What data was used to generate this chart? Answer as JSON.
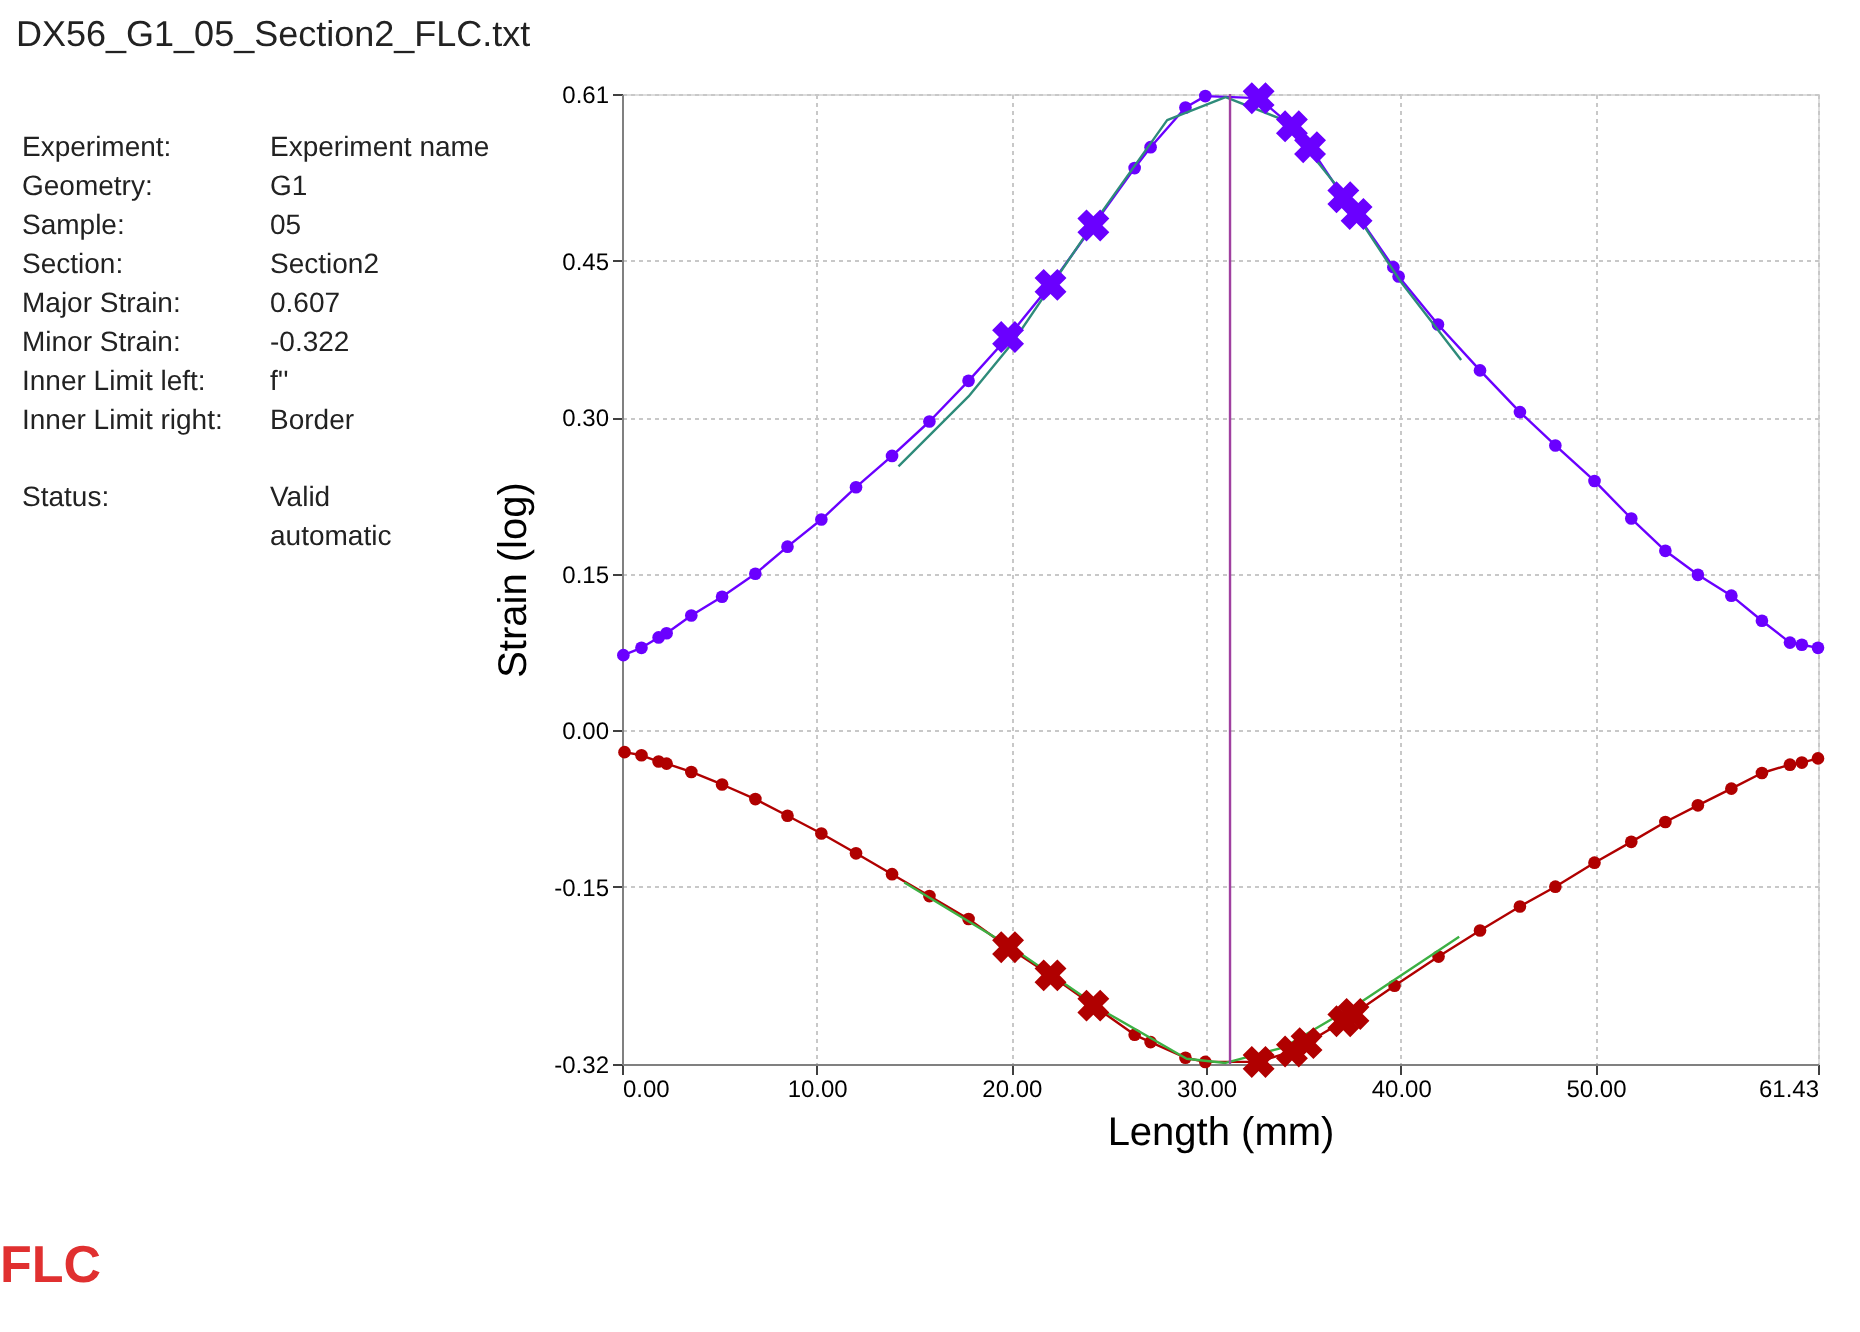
{
  "chart_data": {
    "type": "line",
    "title": "DX56_G1_05_Section2_FLC.txt",
    "xlabel": "Length  (mm)",
    "ylabel": "Strain (log)",
    "annotations": [
      "Experiment:",
      "Experiment name",
      "Geometry:",
      "G1",
      "Sample:",
      "05",
      "Section:",
      "Section2",
      "Major Strain:",
      "0.607",
      "Minor Strain:",
      "-0.322",
      "Inner Limit left:",
      "f''",
      "Inner Limit right:",
      "Border",
      "Status:",
      "Valid\nautomatic",
      "FLC"
    ],
    "xlim": [
      0,
      61.43
    ],
    "ylim": [
      -0.32,
      0.61
    ],
    "xticks": [
      {
        "value": 0,
        "label": "0.00"
      },
      {
        "value": 10,
        "label": "10.00"
      },
      {
        "value": 20,
        "label": "20.00"
      },
      {
        "value": 30,
        "label": "30.00"
      },
      {
        "value": 40,
        "label": "40.00"
      },
      {
        "value": 50,
        "label": "50.00"
      },
      {
        "value": 61.43,
        "label": "61.43"
      }
    ],
    "yticks": [
      {
        "value": -0.32,
        "label": "-0.32"
      },
      {
        "value": -0.15,
        "label": "-0.15"
      },
      {
        "value": 0,
        "label": "0.00"
      },
      {
        "value": 0.15,
        "label": "0.15"
      },
      {
        "value": 0.3,
        "label": "0.30"
      },
      {
        "value": 0.45,
        "label": "0.45"
      },
      {
        "value": 0.61,
        "label": "0.61"
      }
    ],
    "grid": true,
    "ref_lines": [
      {
        "axis": "x",
        "value": 31.23,
        "color": "#a040a0"
      }
    ],
    "series": [
      {
        "color": "#6a00ff",
        "marker": "circle",
        "line_style": "solid",
        "x": [
          0.07,
          1.0,
          1.88,
          2.29,
          3.56,
          5.14,
          6.85,
          8.5,
          10.24,
          12.02,
          13.87,
          15.79,
          17.8,
          19.83,
          22.01,
          24.21,
          26.33,
          27.15,
          28.94,
          29.96,
          32.7,
          34.41,
          35.34,
          37.05,
          37.73,
          39.62,
          39.89,
          41.91,
          44.07,
          46.12,
          47.94,
          49.95,
          51.84,
          53.59,
          55.26,
          56.98,
          58.55,
          59.99,
          60.6,
          61.43
        ],
        "values": [
          0.072,
          0.079,
          0.089,
          0.093,
          0.11,
          0.128,
          0.15,
          0.176,
          0.202,
          0.233,
          0.263,
          0.296,
          0.335,
          0.377,
          0.427,
          0.484,
          0.539,
          0.559,
          0.597,
          0.608,
          0.606,
          0.579,
          0.559,
          0.511,
          0.495,
          0.444,
          0.435,
          0.389,
          0.345,
          0.305,
          0.273,
          0.239,
          0.203,
          0.172,
          0.149,
          0.129,
          0.105,
          0.084,
          0.082,
          0.079
        ]
      },
      {
        "color": "#b00000",
        "marker": "circle",
        "line_style": "solid",
        "x": [
          0.13,
          1.0,
          1.88,
          2.29,
          3.56,
          5.14,
          6.85,
          8.5,
          10.24,
          12.02,
          13.87,
          15.79,
          17.8,
          19.83,
          22.01,
          24.21,
          26.33,
          27.15,
          28.94,
          29.96,
          32.7,
          34.41,
          35.16,
          37.05,
          37.57,
          39.68,
          41.94,
          44.07,
          46.12,
          47.94,
          49.95,
          51.84,
          53.59,
          55.26,
          56.98,
          58.55,
          59.99,
          60.6,
          61.43
        ],
        "values": [
          -0.021,
          -0.024,
          -0.03,
          -0.032,
          -0.04,
          -0.052,
          -0.066,
          -0.082,
          -0.099,
          -0.118,
          -0.138,
          -0.159,
          -0.181,
          -0.208,
          -0.235,
          -0.264,
          -0.292,
          -0.299,
          -0.314,
          -0.318,
          -0.318,
          -0.308,
          -0.3,
          -0.279,
          -0.272,
          -0.245,
          -0.217,
          -0.192,
          -0.169,
          -0.15,
          -0.127,
          -0.107,
          -0.088,
          -0.072,
          -0.056,
          -0.041,
          -0.033,
          -0.031,
          -0.027
        ]
      },
      {
        "color": "#2e8b7a",
        "marker": "none",
        "line_style": "solid",
        "x": [
          14.2,
          17.8,
          20,
          24,
          28,
          31,
          34,
          37,
          40,
          43.1
        ],
        "values": [
          0.253,
          0.32,
          0.37,
          0.48,
          0.585,
          0.607,
          0.585,
          0.515,
          0.43,
          0.355
        ]
      },
      {
        "color": "#3cb043",
        "marker": "none",
        "line_style": "solid",
        "x": [
          14.5,
          20,
          25,
          29,
          31,
          34,
          38,
          43
        ],
        "values": [
          -0.146,
          -0.208,
          -0.272,
          -0.315,
          -0.319,
          -0.304,
          -0.26,
          -0.198
        ]
      },
      {
        "type": "scatter",
        "color": "#6a00ff",
        "marker": "cross",
        "x": [
          19.83,
          22.01,
          24.21,
          32.7,
          34.41,
          35.34,
          37.05,
          37.73
        ],
        "values": [
          0.377,
          0.427,
          0.484,
          0.606,
          0.579,
          0.559,
          0.511,
          0.495
        ]
      },
      {
        "type": "scatter",
        "color": "#b00000",
        "marker": "cross",
        "x": [
          19.83,
          22.01,
          24.21,
          32.7,
          34.41,
          35.16,
          37.05,
          37.57
        ],
        "values": [
          -0.208,
          -0.235,
          -0.264,
          -0.318,
          -0.308,
          -0.3,
          -0.279,
          -0.272
        ]
      }
    ]
  }
}
